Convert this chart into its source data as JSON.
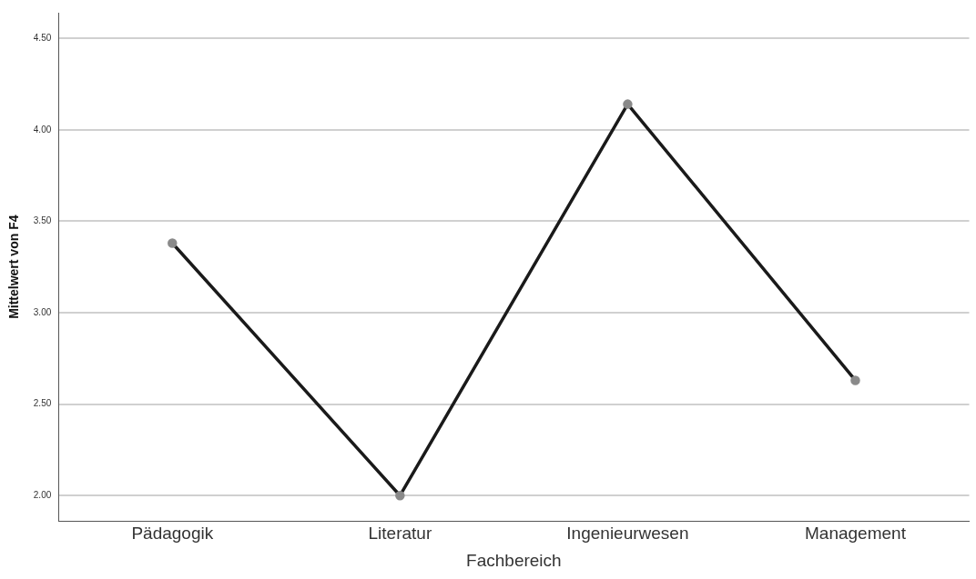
{
  "chart_data": {
    "type": "line",
    "xlabel": "Fachbereich",
    "ylabel": "Mittelwert von F4",
    "categories": [
      "Pädagogik",
      "Literatur",
      "Ingenieurwesen",
      "Management"
    ],
    "series": [
      {
        "color": "#1a1a1a",
        "values": [
          3.38,
          2.0,
          4.14,
          2.63
        ]
      }
    ],
    "ylim": [
      1.86,
      4.64
    ],
    "yticks": [
      {
        "value": 2,
        "label": "2.00"
      },
      {
        "value": 2.5,
        "label": "2.50"
      },
      {
        "value": 3,
        "label": "3.00"
      },
      {
        "value": 3.5,
        "label": "3.50"
      },
      {
        "value": 4,
        "label": "4.00"
      },
      {
        "value": 4.5,
        "label": "4.50"
      }
    ],
    "grid": "y",
    "legend": false,
    "marker": "circle",
    "line_style": "solid"
  }
}
